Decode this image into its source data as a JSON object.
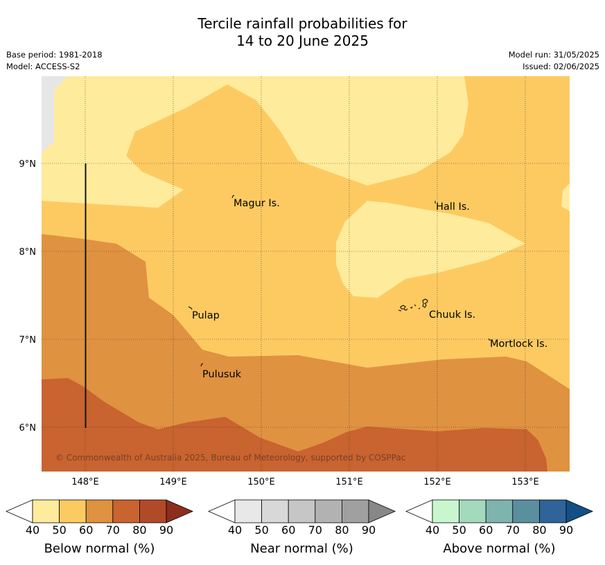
{
  "title": {
    "line1": "Tercile rainfall probabilities for",
    "line2": "14 to 20 June 2025"
  },
  "meta": {
    "base_period": "Base period: 1981-2018",
    "model": "Model: ACCESS-S2",
    "model_run": "Model run: 31/05/2025",
    "issued": "Issued: 02/06/2025"
  },
  "map": {
    "lon_ticks": [
      "148°E",
      "149°E",
      "150°E",
      "151°E",
      "152°E",
      "153°E"
    ],
    "lat_ticks": [
      "9°N",
      "8°N",
      "7°N",
      "6°N"
    ],
    "places": [
      {
        "id": "magur",
        "name": "Magur Is."
      },
      {
        "id": "hall",
        "name": "Hall Is."
      },
      {
        "id": "pulap",
        "name": "Pulap"
      },
      {
        "id": "chuuk",
        "name": "Chuuk Is."
      },
      {
        "id": "mortlock",
        "name": "Mortlock Is."
      },
      {
        "id": "pulusuk",
        "name": "Pulusuk"
      }
    ],
    "copyright": "© Commonwealth of Australia 2025, Bureau of Meteorology, supported by COSPPac"
  },
  "colorbars": [
    {
      "id": "below",
      "title": "Below normal (%)",
      "ticks": [
        "40",
        "50",
        "60",
        "70",
        "80",
        "90"
      ],
      "colors": [
        "#ffeb9c",
        "#fdca62",
        "#df9240",
        "#c96330",
        "#b04a29",
        "#8d2d1c"
      ]
    },
    {
      "id": "near",
      "title": "Near normal (%)",
      "ticks": [
        "40",
        "50",
        "60",
        "70",
        "80",
        "90"
      ],
      "colors": [
        "#e8e8e8",
        "#d8d8d8",
        "#c6c6c6",
        "#b2b2b2",
        "#a0a0a0",
        "#888888"
      ]
    },
    {
      "id": "above",
      "title": "Above normal (%)",
      "ticks": [
        "40",
        "50",
        "60",
        "70",
        "80",
        "90"
      ],
      "colors": [
        "#c8f7cf",
        "#a3d9bd",
        "#7fb3ae",
        "#5a8f9f",
        "#2f6399",
        "#114f85"
      ]
    }
  ]
}
